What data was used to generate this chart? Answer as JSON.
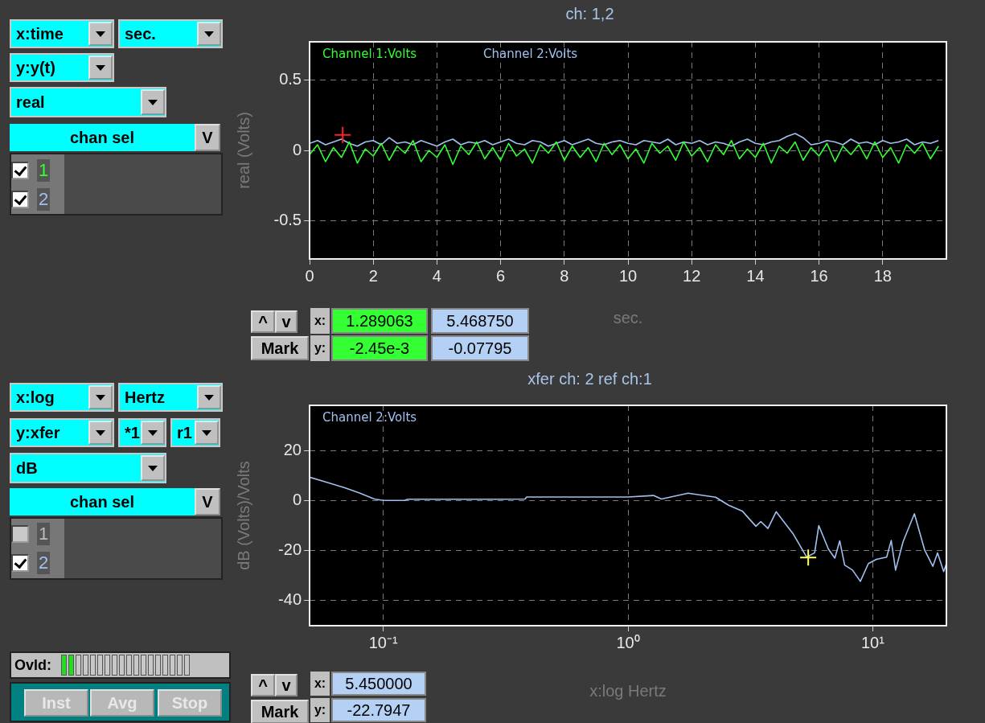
{
  "chart_data": [
    {
      "type": "line",
      "title": "ch: 1,2",
      "xlabel": "sec.",
      "ylabel": "real (Volts)",
      "x": [
        0,
        0.25,
        0.5,
        0.75,
        1,
        1.25,
        1.5,
        1.75,
        2,
        2.25,
        2.5,
        2.75,
        3,
        3.25,
        3.5,
        3.75,
        4,
        4.25,
        4.5,
        4.75,
        5,
        5.25,
        5.5,
        5.75,
        6,
        6.25,
        6.5,
        6.75,
        7,
        7.25,
        7.5,
        7.75,
        8,
        8.25,
        8.5,
        8.75,
        9,
        9.25,
        9.5,
        9.75,
        10,
        10.25,
        10.5,
        10.75,
        11,
        11.25,
        11.5,
        11.75,
        12,
        12.25,
        12.5,
        12.75,
        13,
        13.25,
        13.5,
        13.75,
        14,
        14.25,
        14.5,
        14.75,
        15,
        15.25,
        15.5,
        15.75,
        16,
        16.25,
        16.5,
        16.75,
        17,
        17.25,
        17.5,
        17.75,
        18,
        18.25,
        18.5,
        18.75,
        19,
        19.25,
        19.5,
        19.75
      ],
      "series": [
        {
          "name": "Channel 1:Volts",
          "color": "#33ff33",
          "values": [
            -0.03,
            0.04,
            -0.08,
            0.02,
            -0.05,
            0.06,
            -0.09,
            0.01,
            -0.04,
            0.05,
            -0.07,
            0.03,
            -0.02,
            0.07,
            -0.08,
            0.0,
            -0.05,
            0.04,
            -0.1,
            0.03,
            -0.03,
            0.06,
            -0.06,
            0.02,
            -0.07,
            0.05,
            -0.04,
            0.01,
            -0.09,
            0.04,
            -0.02,
            0.06,
            -0.07,
            0.03,
            -0.05,
            0.02,
            -0.08,
            0.05,
            -0.03,
            0.04,
            -0.06,
            0.01,
            -0.09,
            0.05,
            -0.02,
            0.03,
            -0.07,
            0.06,
            -0.04,
            0.02,
            -0.08,
            0.04,
            -0.03,
            0.07,
            -0.06,
            0.01,
            -0.05,
            0.05,
            -0.09,
            0.03,
            -0.02,
            0.06,
            -0.07,
            0.02,
            -0.04,
            0.05,
            -0.08,
            0.03,
            -0.03,
            0.04,
            -0.06,
            0.06,
            -0.05,
            0.02,
            -0.09,
            0.04,
            -0.02,
            0.05,
            -0.06,
            0.03
          ]
        },
        {
          "name": "Channel 2:Volts",
          "color": "#a0c0f0",
          "values": [
            0.05,
            0.07,
            0.04,
            0.06,
            0.08,
            0.05,
            0.03,
            0.06,
            0.07,
            0.04,
            0.09,
            0.05,
            0.06,
            0.04,
            0.07,
            0.05,
            0.03,
            0.06,
            0.08,
            0.04,
            0.06,
            0.05,
            0.07,
            0.04,
            0.06,
            0.08,
            0.05,
            0.04,
            0.07,
            0.06,
            0.03,
            0.05,
            0.07,
            0.04,
            0.06,
            0.08,
            0.05,
            0.04,
            0.06,
            0.07,
            0.05,
            0.04,
            0.07,
            0.06,
            0.05,
            0.08,
            0.04,
            0.06,
            0.05,
            0.07,
            0.04,
            0.06,
            0.05,
            0.03,
            0.06,
            0.08,
            0.05,
            0.04,
            0.06,
            0.07,
            0.1,
            0.12,
            0.09,
            0.04,
            0.05,
            0.07,
            0.06,
            0.04,
            0.08,
            0.05,
            0.06,
            0.04,
            0.07,
            0.05,
            0.06,
            0.08,
            0.04,
            0.06,
            0.05,
            0.07
          ]
        },
        {
          "type": "scatter",
          "marker": "cross",
          "color": "#ff2020",
          "x": [
            1.04
          ],
          "values": [
            0.11
          ]
        }
      ],
      "xlim": [
        0,
        20
      ],
      "xticks": [
        0,
        2,
        4,
        6,
        8,
        10,
        12,
        14,
        16,
        18
      ],
      "ylim": [
        -0.77,
        0.77
      ],
      "yticks": [
        -0.5,
        0,
        0.5
      ],
      "grid": true,
      "legend": "top left",
      "marker": "none",
      "annotations": [
        "x:time",
        "sec.",
        "y:y(t)",
        "real",
        "chan sel",
        "V",
        "1",
        "2",
        "^",
        "v",
        "Mark",
        "x:",
        "y:",
        "1.289063",
        "5.468750",
        "-2.45e-3",
        "-0.07795"
      ]
    },
    {
      "type": "line",
      "title": "xfer ch: 2 ref ch:1",
      "xlabel": "x:log Hertz",
      "ylabel": "dB (Volts)/Volts",
      "x": [
        0.05,
        0.06,
        0.07,
        0.08,
        0.092,
        0.1,
        0.122,
        0.126,
        0.2,
        0.3,
        0.38,
        0.385,
        0.6,
        1.0,
        1.27,
        1.37,
        1.76,
        2.28,
        2.58,
        2.93,
        3.33,
        3.49,
        3.73,
        4.03,
        4.72,
        5.37,
        5.79,
        6.02,
        6.59,
        7.0,
        7.33,
        7.68,
        8.27,
        8.9,
        9.6,
        10.35,
        11.4,
        11.9,
        12.4,
        13.3,
        14.8,
        16.3,
        17.6,
        18.4,
        19.5,
        20
      ],
      "series": [
        {
          "name": "Channel 2:Volts",
          "color": "#a0c0f0",
          "values": [
            9.3,
            7,
            5,
            3,
            0.6,
            0,
            0,
            0.5,
            0.5,
            0.5,
            0.6,
            1.4,
            1.4,
            1.4,
            2,
            0.6,
            2.9,
            1.3,
            -1.9,
            -4.2,
            -10.3,
            -8.4,
            -11.2,
            -4.5,
            -13.2,
            -22.6,
            -20.9,
            -10,
            -19.4,
            -23,
            -16.1,
            -25.8,
            -27.8,
            -32.3,
            -25.2,
            -23.5,
            -22.6,
            -16,
            -27.8,
            -16.5,
            -5.3,
            -19.8,
            -26.3,
            -20.9,
            -28.4,
            -25.2
          ]
        },
        {
          "type": "scatter",
          "marker": "cross",
          "color": "#ffff66",
          "x": [
            5.45
          ],
          "values": [
            -22.8
          ]
        }
      ],
      "xlim": [
        0.05,
        20
      ],
      "xticks": [
        {
          "value": 0.1,
          "label": "10⁻¹"
        },
        {
          "value": 1,
          "label": "10⁰"
        },
        {
          "value": 10,
          "label": "10¹"
        }
      ],
      "ylim": [
        -50,
        38
      ],
      "yticks": [
        -40,
        -20,
        0,
        20
      ],
      "log": "x",
      "grid": true,
      "legend": "top left",
      "marker": "none",
      "annotations": [
        "x:log",
        "Hertz",
        "y:xfer",
        "*1",
        "r1",
        "dB",
        "chan sel",
        "V",
        "1",
        "2",
        "Ovld:",
        "Inst",
        "Avg",
        "Stop",
        "^",
        "v",
        "Mark",
        "x:",
        "y:",
        "5.450000",
        "-22.7947"
      ]
    }
  ]
}
